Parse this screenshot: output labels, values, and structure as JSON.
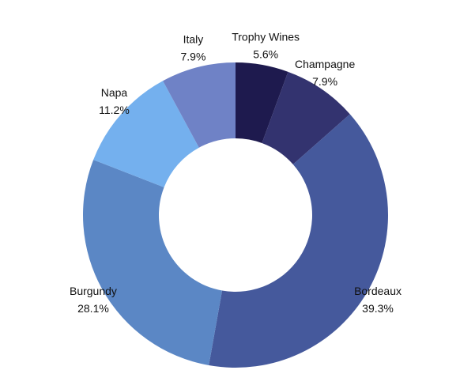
{
  "chart_data": {
    "type": "donut",
    "categories": [
      "Trophy Wines",
      "Champagne",
      "Bordeaux",
      "Burgundy",
      "Napa",
      "Italy"
    ],
    "values": [
      5.6,
      7.9,
      39.3,
      28.1,
      11.2,
      7.9
    ],
    "value_labels": [
      "5.6%",
      "7.9%",
      "39.3%",
      "28.1%",
      "11.2%",
      "7.9%"
    ],
    "colors": [
      "#1e1a4e",
      "#33336f",
      "#45599c",
      "#5b87c5",
      "#74b0ee",
      "#6f82c6"
    ]
  }
}
